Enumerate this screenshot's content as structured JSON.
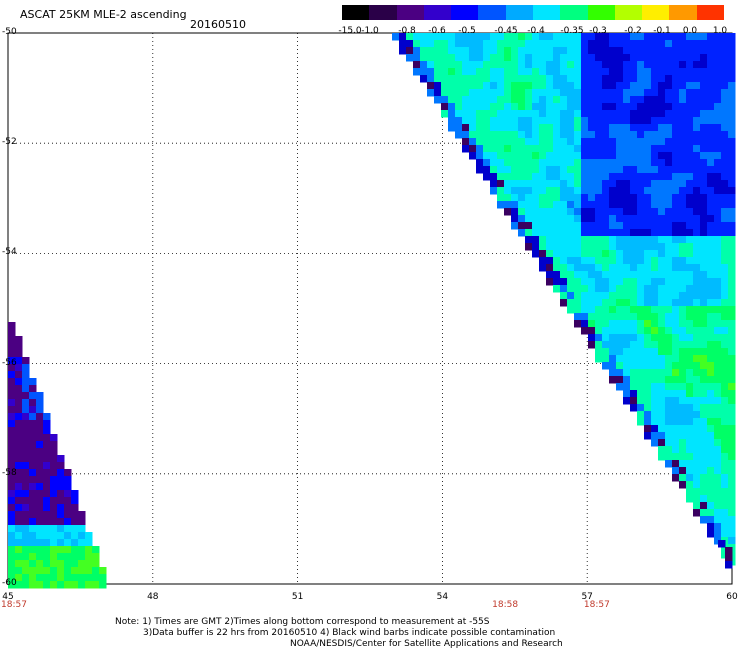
{
  "header": {
    "title": "ASCAT 25KM MLE-2 ascending",
    "date": "20160510"
  },
  "colorbar": {
    "labels": [
      "-15.0",
      "-1.0",
      "-0.8",
      "-0.6",
      "-0.5",
      "-0.45",
      "-0.4",
      "-0.35",
      "-0.3",
      "-0.2",
      "-0.1",
      "0.0",
      "1.0"
    ],
    "colors": [
      "#000000",
      "#2a0048",
      "#4b0082",
      "#3300cc",
      "#0000ff",
      "#0055ff",
      "#00aaff",
      "#00e5ff",
      "#00ff80",
      "#33ff00",
      "#b3ff00",
      "#ffee00",
      "#ff9900",
      "#ff3300"
    ]
  },
  "map": {
    "lon_range": [
      45,
      60
    ],
    "lat_range": [
      -60,
      -50
    ],
    "lat_ticks": [
      "-50",
      "-52",
      "-54",
      "-56",
      "-58",
      "-60"
    ],
    "lon_ticks": [
      "45",
      "48",
      "51",
      "54",
      "57",
      "60"
    ],
    "times": [
      {
        "lon": 45,
        "label": "18:57"
      },
      {
        "lon": 55.3,
        "label": "18:58"
      },
      {
        "lon": 57.2,
        "label": "18:57"
      }
    ]
  },
  "notes": {
    "line1": "Note: 1) Times are GMT 2)Times along bottom correspond to measurement at -55S",
    "line2": "3)Data buffer is 22 hrs from 20160510 4) Black wind barbs indicate possible contamination",
    "line3": "NOAA/NESDIS/Center for Satellite Applications and Research"
  }
}
